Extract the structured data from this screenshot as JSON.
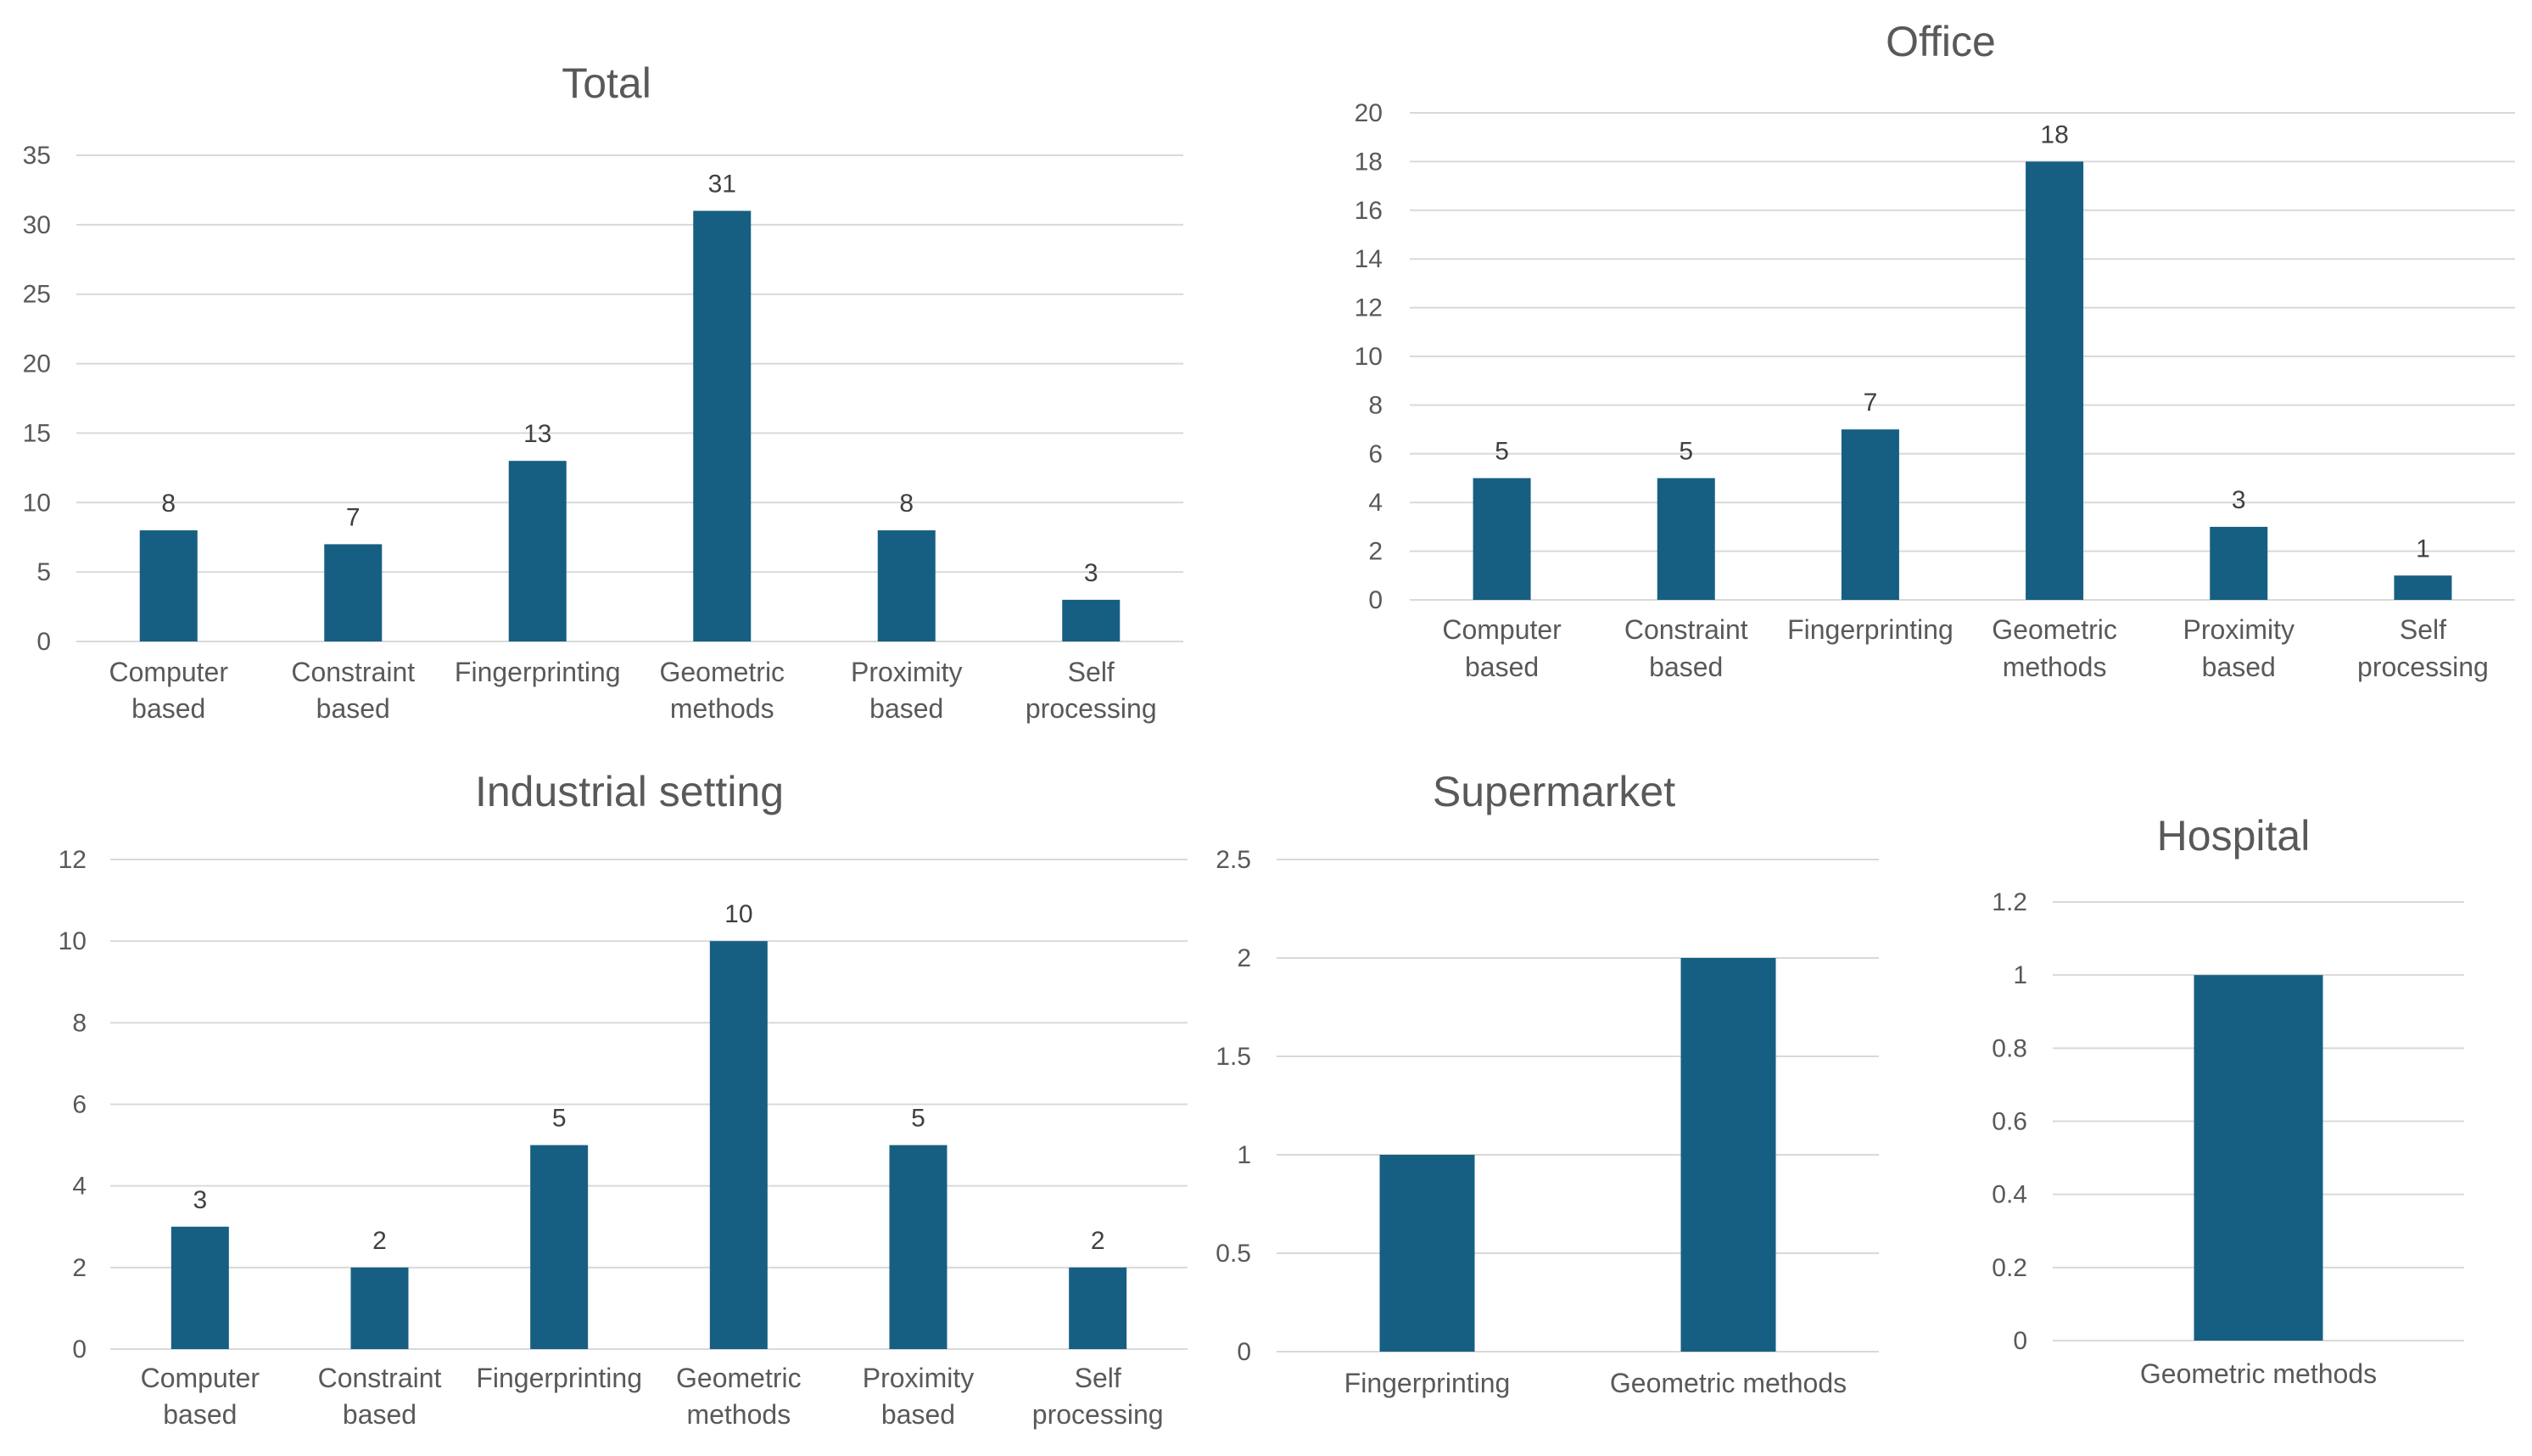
{
  "colors": {
    "bar": "#175f82",
    "grid": "#d9d9d9",
    "text": "#595959"
  },
  "chart_data": [
    {
      "type": "bar",
      "title": "Total",
      "categories": [
        [
          "Computer",
          "based"
        ],
        [
          "Constraint",
          "based"
        ],
        [
          "Fingerprinting"
        ],
        [
          "Geometric",
          "methods"
        ],
        [
          "Proximity",
          "based"
        ],
        [
          "Self",
          "processing"
        ]
      ],
      "values": [
        8,
        7,
        13,
        31,
        8,
        3
      ],
      "data_labels": true,
      "ylim": [
        0,
        35
      ],
      "yticks": [
        0,
        5,
        10,
        15,
        20,
        25,
        30,
        35
      ],
      "grid": true,
      "legend": "none"
    },
    {
      "type": "bar",
      "title": "Office",
      "categories": [
        [
          "Computer",
          "based"
        ],
        [
          "Constraint",
          "based"
        ],
        [
          "Fingerprinting"
        ],
        [
          "Geometric",
          "methods"
        ],
        [
          "Proximity",
          "based"
        ],
        [
          "Self",
          "processing"
        ]
      ],
      "values": [
        5,
        5,
        7,
        18,
        3,
        1
      ],
      "data_labels": true,
      "ylim": [
        0,
        20
      ],
      "yticks": [
        0,
        2,
        4,
        6,
        8,
        10,
        12,
        14,
        16,
        18,
        20
      ],
      "grid": true,
      "legend": "none"
    },
    {
      "type": "bar",
      "title": "Industrial setting",
      "categories": [
        [
          "Computer",
          "based"
        ],
        [
          "Constraint",
          "based"
        ],
        [
          "Fingerprinting"
        ],
        [
          "Geometric",
          "methods"
        ],
        [
          "Proximity",
          "based"
        ],
        [
          "Self",
          "processing"
        ]
      ],
      "values": [
        3,
        2,
        5,
        10,
        5,
        2
      ],
      "data_labels": true,
      "ylim": [
        0,
        12
      ],
      "yticks": [
        0,
        2,
        4,
        6,
        8,
        10,
        12
      ],
      "grid": true,
      "legend": "none"
    },
    {
      "type": "bar",
      "title": "Supermarket",
      "categories": [
        [
          "Fingerprinting"
        ],
        [
          "Geometric methods"
        ]
      ],
      "values": [
        1,
        2
      ],
      "data_labels": false,
      "ylim": [
        0,
        2.5
      ],
      "yticks": [
        0,
        0.5,
        1,
        1.5,
        2,
        2.5
      ],
      "grid": true,
      "legend": "none"
    },
    {
      "type": "bar",
      "title": "Hospital",
      "categories": [
        [
          "Geometric methods"
        ]
      ],
      "values": [
        1
      ],
      "data_labels": false,
      "ylim": [
        0,
        1.2
      ],
      "yticks": [
        0,
        0.2,
        0.4,
        0.6,
        0.8,
        1,
        1.2
      ],
      "grid": true,
      "legend": "none"
    }
  ]
}
